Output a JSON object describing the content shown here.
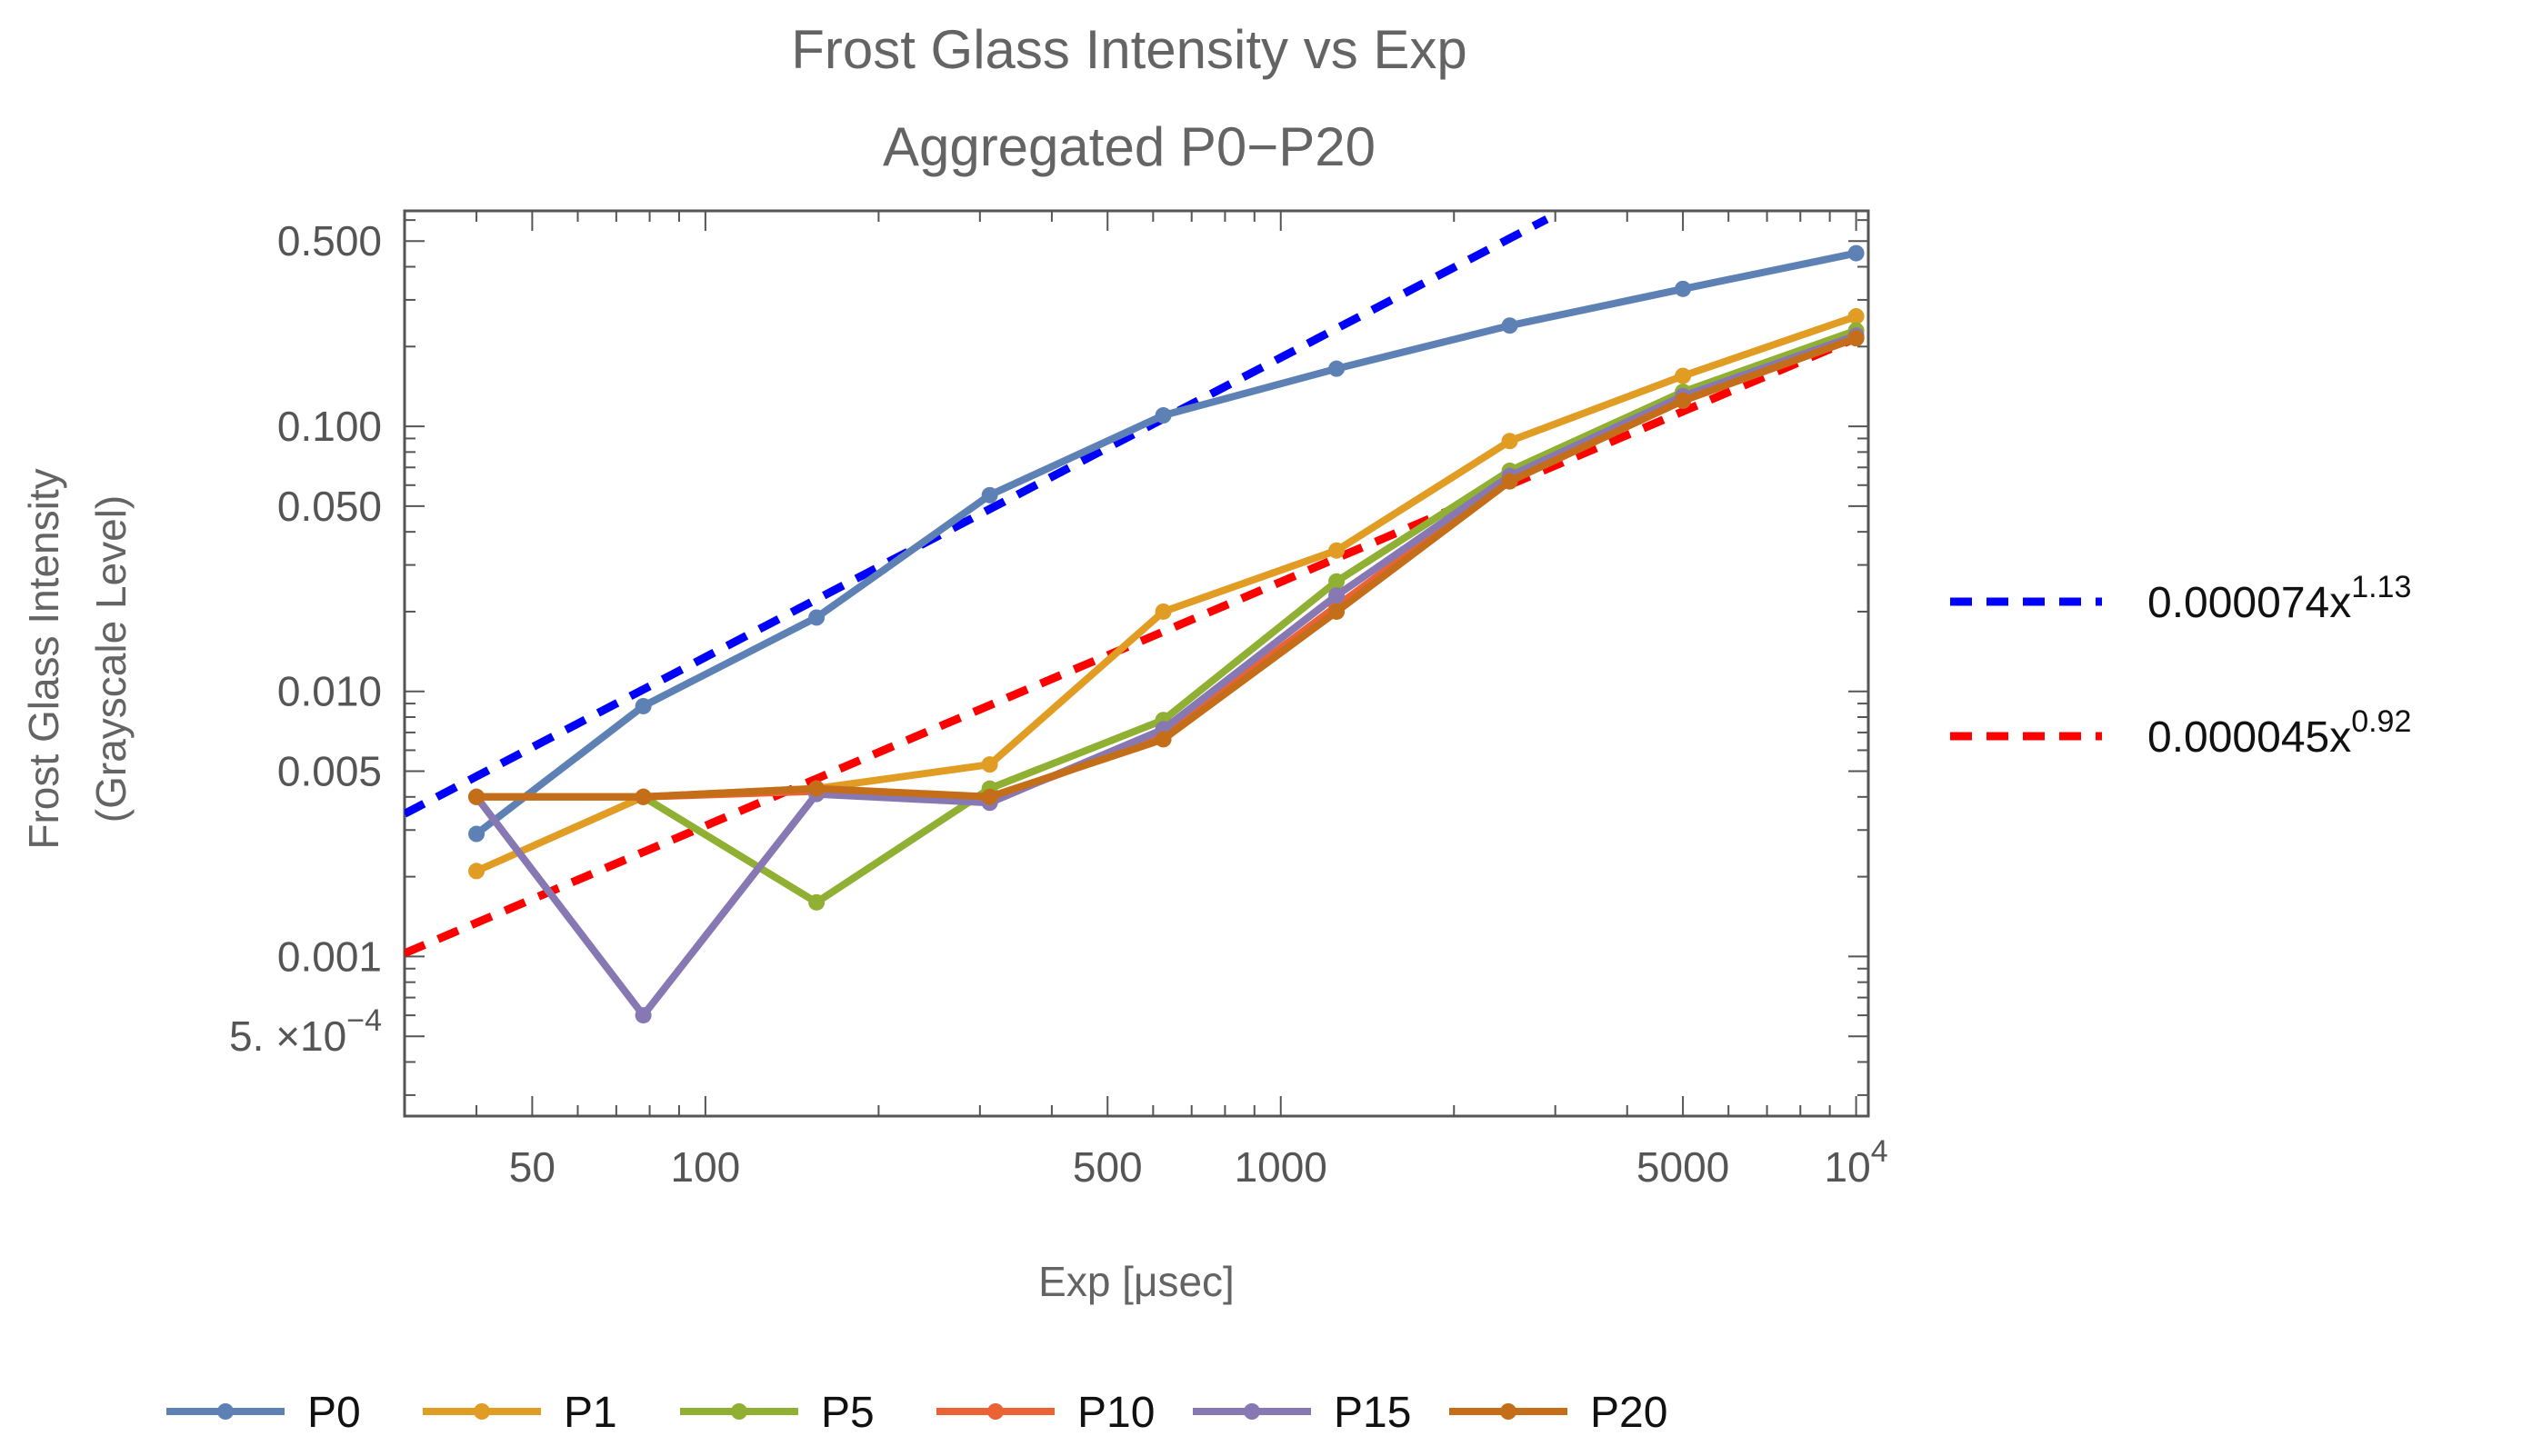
{
  "chart_data": {
    "type": "line",
    "title": "Frost Glass Intensity vs Exp",
    "subtitle": "Aggregated P0−P20",
    "xlabel": "Exp [μsec]",
    "ylabel_line1": "Frost Glass Intensity",
    "ylabel_line2": "(Grayscale Level)",
    "xscale": "log",
    "yscale": "log",
    "xlim": [
      30,
      10500
    ],
    "ylim": [
      0.00025,
      0.65
    ],
    "x_ticks": [
      {
        "value": 50,
        "label": "50"
      },
      {
        "value": 100,
        "label": "100"
      },
      {
        "value": 500,
        "label": "500"
      },
      {
        "value": 1000,
        "label": "1000"
      },
      {
        "value": 5000,
        "label": "5000"
      },
      {
        "value": 10000,
        "label": "10",
        "exp": "4"
      }
    ],
    "y_ticks": [
      {
        "value": 0.5,
        "label": "0.500"
      },
      {
        "value": 0.1,
        "label": "0.100"
      },
      {
        "value": 0.05,
        "label": "0.050"
      },
      {
        "value": 0.01,
        "label": "0.010"
      },
      {
        "value": 0.005,
        "label": "0.005"
      },
      {
        "value": 0.001,
        "label": "0.001"
      },
      {
        "value": 0.0005,
        "label": "5. ×10",
        "exp": "−4"
      }
    ],
    "x": [
      40,
      78,
      156,
      312,
      625,
      1250,
      2500,
      5000,
      10000
    ],
    "series": [
      {
        "name": "P0",
        "color": "#5E81B5",
        "values": [
          0.0029,
          0.0088,
          0.019,
          0.055,
          0.11,
          0.165,
          0.24,
          0.33,
          0.45
        ]
      },
      {
        "name": "P1",
        "color": "#E19C24",
        "values": [
          0.0021,
          0.004,
          0.0043,
          0.0053,
          0.02,
          0.034,
          0.088,
          0.155,
          0.26
        ]
      },
      {
        "name": "P5",
        "color": "#8FB032",
        "values": [
          0.004,
          0.004,
          0.0016,
          0.0043,
          0.0078,
          0.026,
          0.068,
          0.135,
          0.23
        ]
      },
      {
        "name": "P10",
        "color": "#EB6235",
        "values": [
          0.004,
          0.004,
          0.0042,
          0.0039,
          0.0068,
          0.021,
          0.063,
          0.125,
          0.215
        ]
      },
      {
        "name": "P15",
        "color": "#8778B3",
        "values": [
          0.004,
          0.0006,
          0.0041,
          0.0038,
          0.0072,
          0.023,
          0.065,
          0.13,
          0.22
        ]
      },
      {
        "name": "P20",
        "color": "#C56E1A",
        "values": [
          0.004,
          0.004,
          0.0043,
          0.004,
          0.0066,
          0.02,
          0.062,
          0.125,
          0.215
        ]
      }
    ],
    "fits": [
      {
        "name": "0.000074x",
        "exp": "1.13",
        "coef": 7.4e-05,
        "power": 1.13,
        "color": "#0000FF",
        "x_range": [
          30,
          2900
        ]
      },
      {
        "name": "0.000045x",
        "exp": "0.92",
        "coef": 4.5e-05,
        "power": 0.92,
        "color": "#FF0000",
        "x_range": [
          30,
          10000
        ]
      }
    ]
  }
}
